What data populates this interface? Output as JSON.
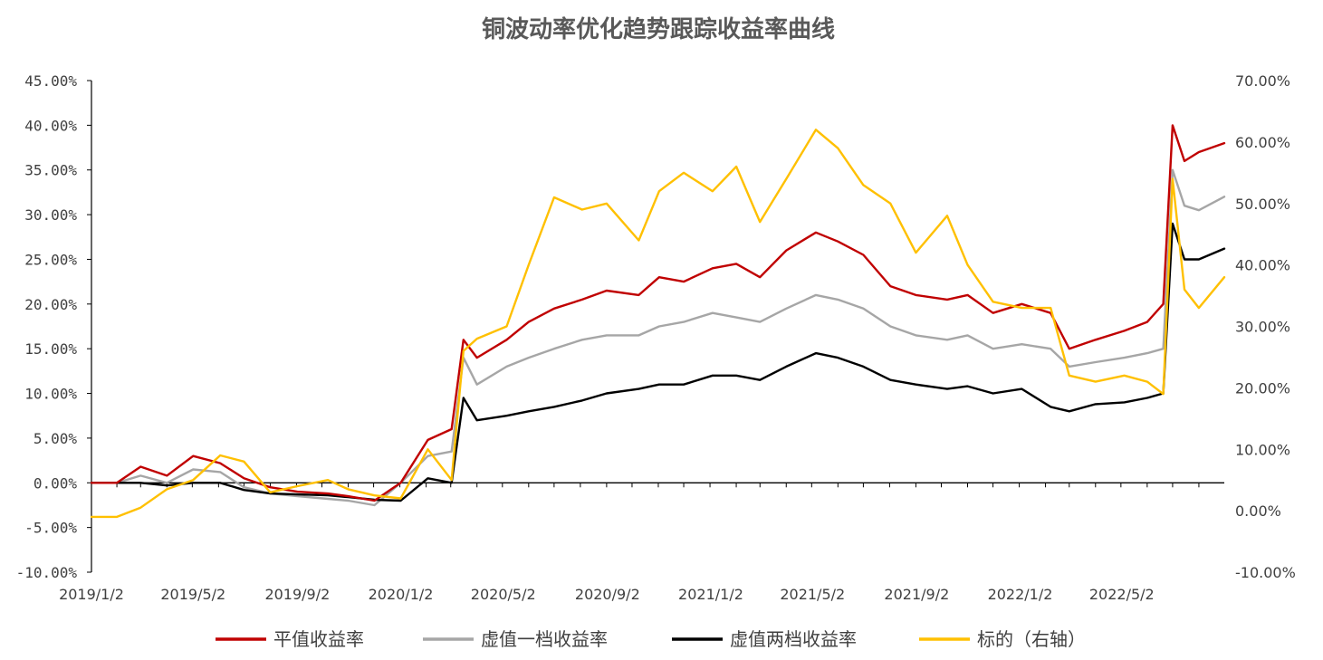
{
  "chart_data": {
    "type": "line",
    "title": "铜波动率优化趋势跟踪收益率曲线",
    "xlabel": "",
    "ylabel": "",
    "y_left": {
      "range": [
        -0.1,
        0.45
      ],
      "ticks": [
        "-10.00%",
        "-5.00%",
        "0.00%",
        "5.00%",
        "10.00%",
        "15.00%",
        "20.00%",
        "25.00%",
        "30.00%",
        "35.00%",
        "40.00%",
        "45.00%"
      ],
      "tick_values": [
        -0.1,
        -0.05,
        0.0,
        0.05,
        0.1,
        0.15,
        0.2,
        0.25,
        0.3,
        0.35,
        0.4,
        0.45
      ]
    },
    "y_right": {
      "range": [
        -0.1,
        0.7
      ],
      "ticks": [
        "-10.00%",
        "0.00%",
        "10.00%",
        "20.00%",
        "30.00%",
        "40.00%",
        "50.00%",
        "60.00%",
        "70.00%"
      ],
      "tick_values": [
        -0.1,
        0.0,
        0.1,
        0.2,
        0.3,
        0.4,
        0.5,
        0.6,
        0.7
      ]
    },
    "x_axis": {
      "range": [
        "2019-01-02",
        "2022-08-31"
      ],
      "tick_labels": [
        "2019/1/2",
        "2019/5/2",
        "2019/9/2",
        "2020/1/2",
        "2020/5/2",
        "2020/9/2",
        "2021/1/2",
        "2021/5/2",
        "2021/9/2",
        "2022/1/2",
        "2022/5/2"
      ],
      "tick_dates": [
        "2019-01-02",
        "2019-05-02",
        "2019-09-02",
        "2020-01-02",
        "2020-05-02",
        "2020-09-02",
        "2021-01-02",
        "2021-05-02",
        "2021-09-02",
        "2022-01-02",
        "2022-05-02"
      ]
    },
    "grid": false,
    "legend_position": "bottom",
    "x": [
      "2019-01-02",
      "2019-02-01",
      "2019-03-01",
      "2019-04-01",
      "2019-05-02",
      "2019-06-03",
      "2019-07-01",
      "2019-08-01",
      "2019-09-02",
      "2019-10-08",
      "2019-11-01",
      "2019-12-02",
      "2020-01-02",
      "2020-02-03",
      "2020-03-02",
      "2020-03-16",
      "2020-04-01",
      "2020-05-06",
      "2020-06-01",
      "2020-07-01",
      "2020-08-03",
      "2020-09-01",
      "2020-10-09",
      "2020-11-02",
      "2020-12-01",
      "2021-01-04",
      "2021-02-01",
      "2021-03-01",
      "2021-04-01",
      "2021-05-06",
      "2021-06-01",
      "2021-07-01",
      "2021-08-02",
      "2021-09-01",
      "2021-10-08",
      "2021-11-01",
      "2021-12-01",
      "2022-01-04",
      "2022-02-07",
      "2022-03-01",
      "2022-04-01",
      "2022-05-05",
      "2022-06-01",
      "2022-06-20",
      "2022-07-01",
      "2022-07-15",
      "2022-08-01",
      "2022-08-31"
    ],
    "series": [
      {
        "name": "平值收益率",
        "axis": "left",
        "color": "#C00000",
        "values": [
          0.0,
          0.0,
          0.018,
          0.008,
          0.03,
          0.022,
          0.005,
          -0.005,
          -0.01,
          -0.012,
          -0.015,
          -0.02,
          0.0,
          0.048,
          0.06,
          0.16,
          0.14,
          0.16,
          0.18,
          0.195,
          0.205,
          0.215,
          0.21,
          0.23,
          0.225,
          0.24,
          0.245,
          0.23,
          0.26,
          0.28,
          0.27,
          0.255,
          0.22,
          0.21,
          0.205,
          0.21,
          0.19,
          0.2,
          0.19,
          0.15,
          0.16,
          0.17,
          0.18,
          0.2,
          0.4,
          0.36,
          0.37,
          0.38
        ]
      },
      {
        "name": "虚值一档收益率",
        "axis": "left",
        "color": "#A6A6A6",
        "values": [
          0.0,
          0.0,
          0.008,
          0.0,
          0.015,
          0.012,
          -0.005,
          -0.012,
          -0.015,
          -0.018,
          -0.02,
          -0.025,
          0.0,
          0.03,
          0.035,
          0.14,
          0.11,
          0.13,
          0.14,
          0.15,
          0.16,
          0.165,
          0.165,
          0.175,
          0.18,
          0.19,
          0.185,
          0.18,
          0.195,
          0.21,
          0.205,
          0.195,
          0.175,
          0.165,
          0.16,
          0.165,
          0.15,
          0.155,
          0.15,
          0.13,
          0.135,
          0.14,
          0.145,
          0.15,
          0.35,
          0.31,
          0.305,
          0.32
        ]
      },
      {
        "name": "虚值两档收益率",
        "axis": "left",
        "color": "#000000",
        "values": [
          0.0,
          0.0,
          0.0,
          -0.003,
          0.0,
          0.0,
          -0.008,
          -0.012,
          -0.013,
          -0.014,
          -0.016,
          -0.019,
          -0.02,
          0.005,
          0.0,
          0.095,
          0.07,
          0.075,
          0.08,
          0.085,
          0.092,
          0.1,
          0.105,
          0.11,
          0.11,
          0.12,
          0.12,
          0.115,
          0.13,
          0.145,
          0.14,
          0.13,
          0.115,
          0.11,
          0.105,
          0.108,
          0.1,
          0.105,
          0.085,
          0.08,
          0.088,
          0.09,
          0.095,
          0.1,
          0.29,
          0.25,
          0.25,
          0.262
        ]
      },
      {
        "name": "标的（右轴）",
        "axis": "right",
        "color": "#FFC000",
        "values": [
          -0.01,
          -0.01,
          0.005,
          0.035,
          0.05,
          0.09,
          0.08,
          0.03,
          0.04,
          0.05,
          0.035,
          0.025,
          0.02,
          0.1,
          0.05,
          0.26,
          0.28,
          0.3,
          0.4,
          0.51,
          0.49,
          0.5,
          0.44,
          0.52,
          0.55,
          0.52,
          0.56,
          0.47,
          0.54,
          0.62,
          0.59,
          0.53,
          0.5,
          0.42,
          0.48,
          0.4,
          0.34,
          0.33,
          0.33,
          0.22,
          0.21,
          0.22,
          0.21,
          0.19,
          0.54,
          0.36,
          0.33,
          0.38
        ]
      }
    ]
  }
}
